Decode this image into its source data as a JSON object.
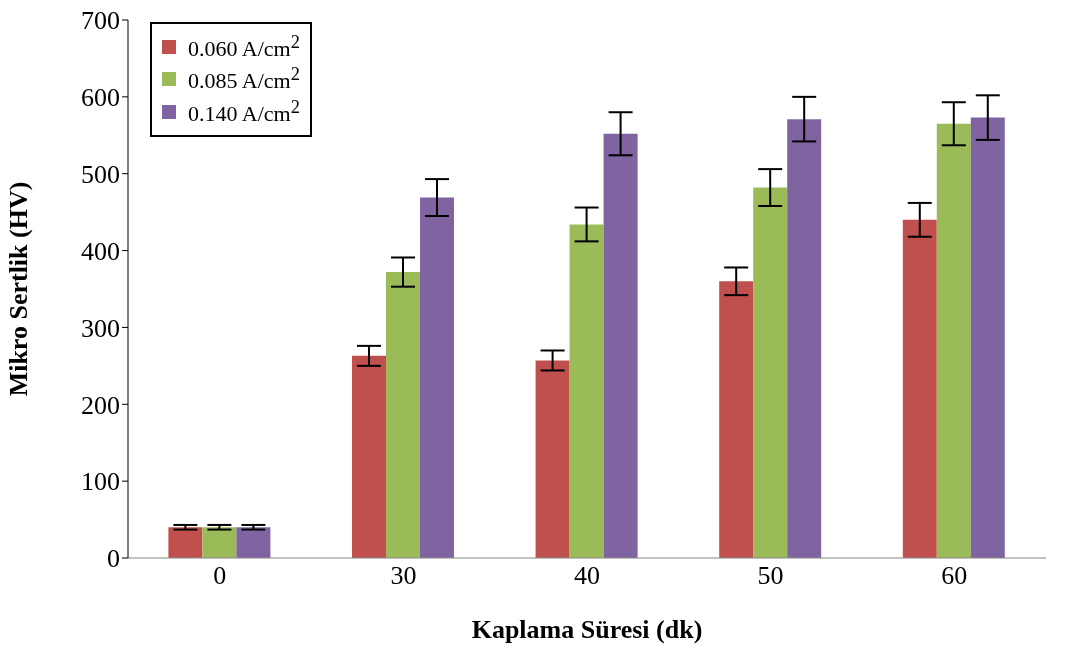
{
  "chart_data": {
    "type": "bar",
    "xlabel": "Kaplama Süresi (dk)",
    "ylabel": "Mikro Sertlik (HV)",
    "categories": [
      "0",
      "30",
      "40",
      "50",
      "60"
    ],
    "series": [
      {
        "name": "0.060 A/cm$^{2}$",
        "color": "#c0504d",
        "values": [
          40,
          263,
          257,
          360,
          440
        ],
        "errors": [
          3,
          13,
          13,
          18,
          22
        ]
      },
      {
        "name": "0.085 A/cm$^{2}$",
        "color": "#9bbb59",
        "values": [
          40,
          372,
          434,
          482,
          565
        ],
        "errors": [
          3,
          19,
          22,
          24,
          28
        ]
      },
      {
        "name": "0.140 A/cm$^{2}$",
        "color": "#8064a2",
        "values": [
          40,
          469,
          552,
          571,
          573
        ],
        "errors": [
          3,
          24,
          28,
          29,
          29
        ]
      }
    ],
    "ylim": [
      0,
      700
    ],
    "yticks": [
      0,
      100,
      200,
      300,
      400,
      500,
      600,
      700
    ],
    "grid": false,
    "legend": "top left"
  }
}
